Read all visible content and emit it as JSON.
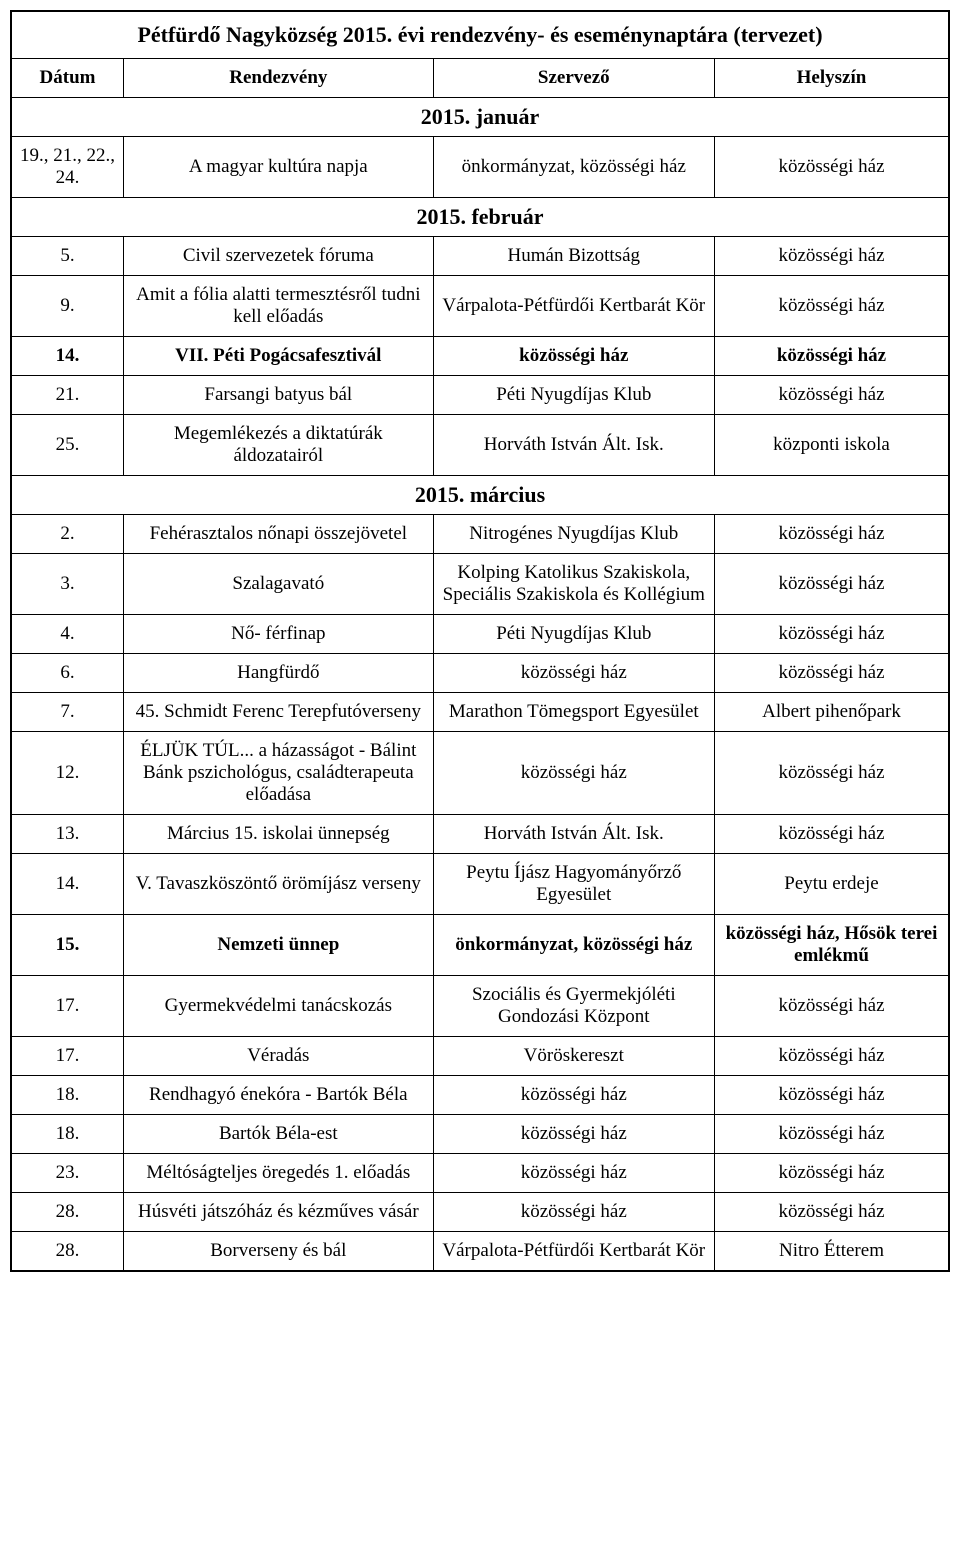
{
  "title": "Pétfürdő Nagyközség 2015. évi rendezvény- és eseménynaptára (tervezet)",
  "headers": {
    "date": "Dátum",
    "event": "Rendezvény",
    "organizer": "Szervező",
    "venue": "Helyszín"
  },
  "months": {
    "jan": "2015. január",
    "feb": "2015. február",
    "mar": "2015. március"
  },
  "rows": {
    "jan1": {
      "date": "19., 21., 22., 24.",
      "event": "A magyar kultúra napja",
      "org": "önkormányzat, közösségi ház",
      "venue": "közösségi ház"
    },
    "feb1": {
      "date": "5.",
      "event": "Civil szervezetek fóruma",
      "org": "Humán Bizottság",
      "venue": "közösségi ház"
    },
    "feb2": {
      "date": "9.",
      "event": "Amit a fólia alatti termesztésről tudni kell előadás",
      "org": "Várpalota-Pétfürdői Kertbarát Kör",
      "venue": "közösségi ház"
    },
    "feb3": {
      "date": "14.",
      "event": "VII. Péti Pogácsafesztivál",
      "org": "közösségi ház",
      "venue": "közösségi ház"
    },
    "feb4": {
      "date": "21.",
      "event": "Farsangi batyus bál",
      "org": "Péti Nyugdíjas Klub",
      "venue": "közösségi ház"
    },
    "feb5": {
      "date": "25.",
      "event": "Megemlékezés a diktatúrák áldozatairól",
      "org": "Horváth István Ált. Isk.",
      "venue": "központi iskola"
    },
    "mar1": {
      "date": "2.",
      "event": "Fehérasztalos nőnapi összejövetel",
      "org": "Nitrogénes Nyugdíjas Klub",
      "venue": "közösségi ház"
    },
    "mar2": {
      "date": "3.",
      "event": "Szalagavató",
      "org": "Kolping Katolikus Szakiskola, Speciális Szakiskola és Kollégium",
      "venue": "közösségi ház"
    },
    "mar3": {
      "date": "4.",
      "event": "Nő- férfinap",
      "org": "Péti Nyugdíjas Klub",
      "venue": "közösségi ház"
    },
    "mar4": {
      "date": "6.",
      "event": "Hangfürdő",
      "org": "közösségi ház",
      "venue": "közösségi ház"
    },
    "mar5": {
      "date": "7.",
      "event": "45. Schmidt Ferenc Terepfutóverseny",
      "org": "Marathon Tömegsport Egyesület",
      "venue": "Albert pihenőpark"
    },
    "mar6": {
      "date": "12.",
      "event": "ÉLJÜK TÚL... a házasságot - Bálint Bánk pszichológus, családterapeuta előadása",
      "org": "közösségi ház",
      "venue": "közösségi ház"
    },
    "mar7": {
      "date": "13.",
      "event": "Március 15. iskolai ünnepség",
      "org": "Horváth István Ált. Isk.",
      "venue": "közösségi ház"
    },
    "mar8": {
      "date": "14.",
      "event": "V. Tavaszköszöntő örömíjász verseny",
      "org": "Peytu Íjász Hagyományőrző Egyesület",
      "venue": "Peytu erdeje"
    },
    "mar9": {
      "date": "15.",
      "event": "Nemzeti ünnep",
      "org": "önkormányzat, közösségi ház",
      "venue": "közösségi ház, Hősök terei emlékmű"
    },
    "mar10": {
      "date": "17.",
      "event": "Gyermekvédelmi tanácskozás",
      "org": "Szociális és Gyermekjóléti Gondozási Központ",
      "venue": "közösségi ház"
    },
    "mar11": {
      "date": "17.",
      "event": "Véradás",
      "org": "Vöröskereszt",
      "venue": "közösségi ház"
    },
    "mar12": {
      "date": "18.",
      "event": "Rendhagyó énekóra - Bartók Béla",
      "org": "közösségi ház",
      "venue": "közösségi ház"
    },
    "mar13": {
      "date": "18.",
      "event": "Bartók Béla-est",
      "org": "közösségi ház",
      "venue": "közösségi ház"
    },
    "mar14": {
      "date": "23.",
      "event": "Méltóságteljes öregedés           1. előadás",
      "org": "közösségi ház",
      "venue": "közösségi ház"
    },
    "mar15": {
      "date": "28.",
      "event": "Húsvéti játszóház és kézműves vásár",
      "org": "közösségi ház",
      "venue": "közösségi ház"
    },
    "mar16": {
      "date": "28.",
      "event": "Borverseny és bál",
      "org": "Várpalota-Pétfürdői Kertbarát Kör",
      "venue": "Nitro Étterem"
    }
  }
}
